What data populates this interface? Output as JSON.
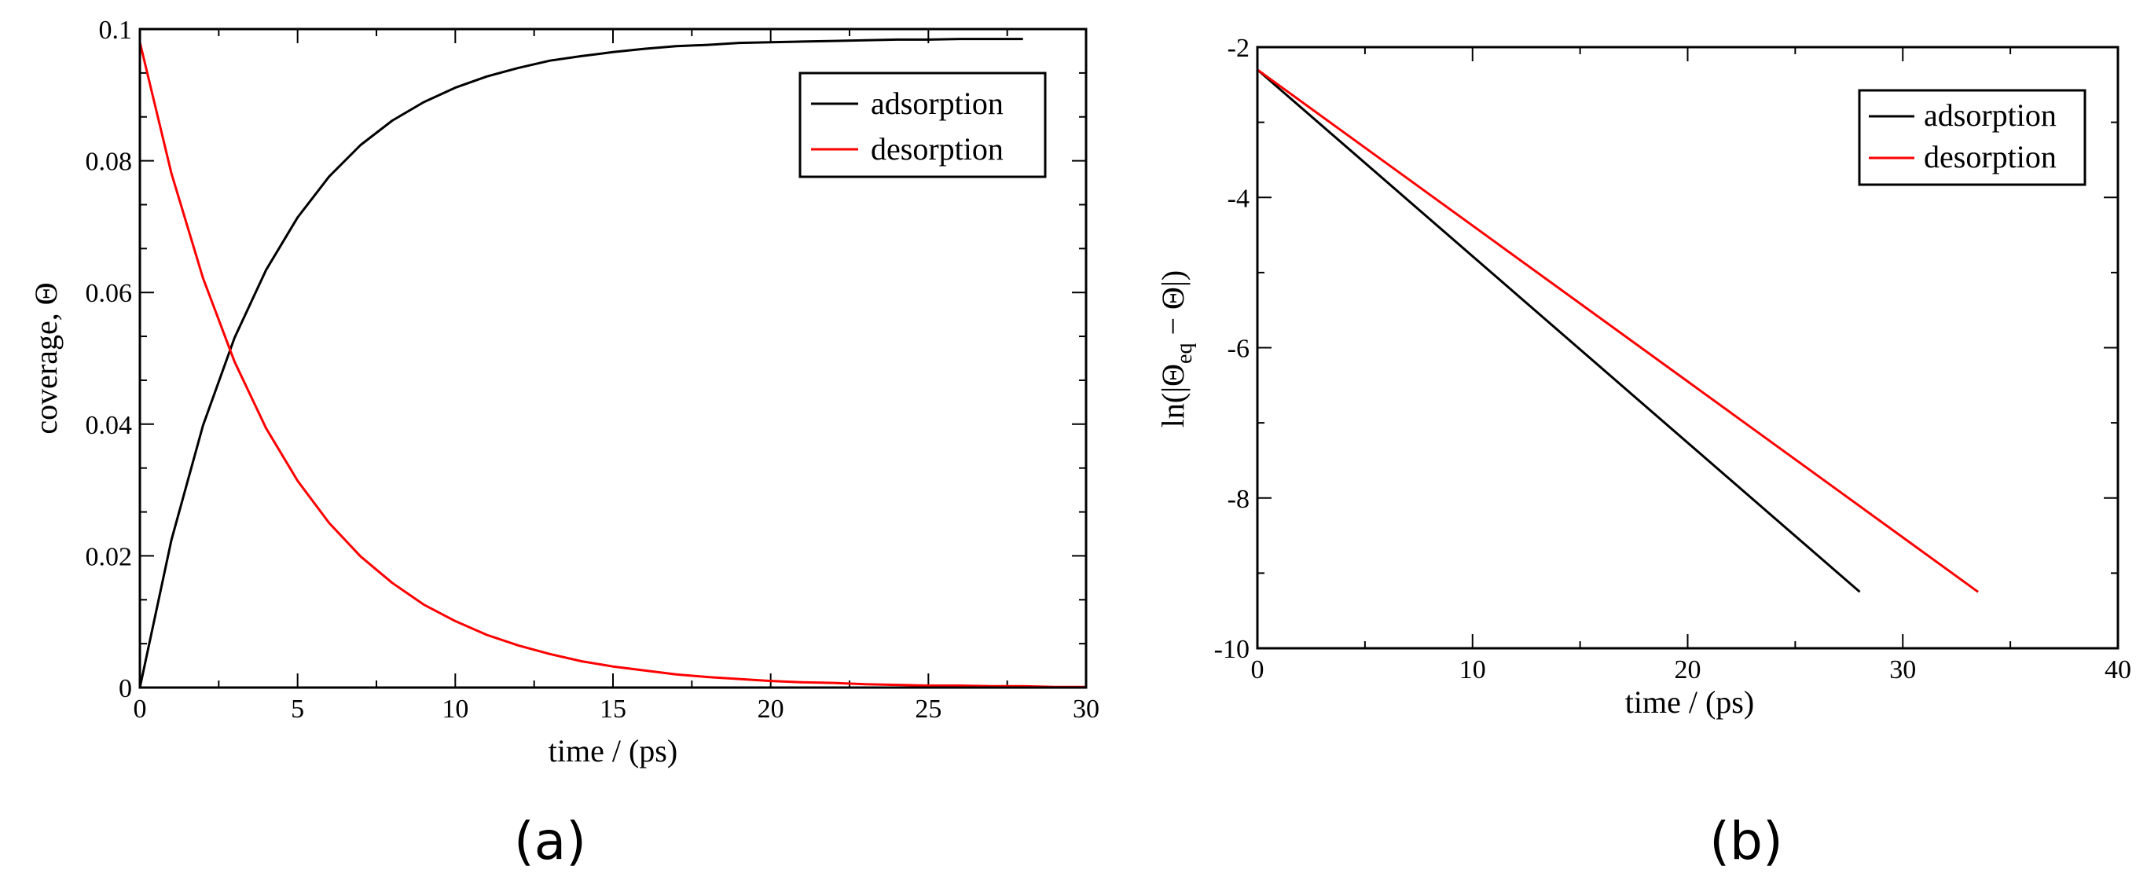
{
  "chart_data": [
    {
      "type": "line",
      "panel_label": "(a)",
      "xlabel": "time / (ps)",
      "ylabel": "coverage, Θ",
      "xlim": [
        0,
        30
      ],
      "ylim": [
        0,
        0.1
      ],
      "x_ticks": [
        0,
        5,
        10,
        15,
        20,
        25,
        30
      ],
      "x_tick_labels": [
        "0",
        "5",
        "10",
        "15",
        "20",
        "25",
        "30"
      ],
      "y_ticks": [
        0,
        0.02,
        0.04,
        0.06,
        0.08,
        0.1
      ],
      "y_tick_labels": [
        "0",
        "0.02",
        "0.04",
        "0.06",
        "0.08",
        "0.1"
      ],
      "legend_position": "top-right",
      "series": [
        {
          "name": "adsorption",
          "color": "#000000",
          "x": [
            0,
            1,
            2,
            3,
            4,
            5,
            6,
            7,
            8,
            9,
            10,
            11,
            12,
            13,
            14,
            15,
            16,
            17,
            18,
            19,
            20,
            21,
            22,
            23,
            24,
            25,
            26,
            27,
            28
          ],
          "y": [
            0,
            0.0224,
            0.0398,
            0.0531,
            0.0634,
            0.0714,
            0.0776,
            0.0824,
            0.0861,
            0.0889,
            0.0911,
            0.0928,
            0.0941,
            0.0952,
            0.0959,
            0.0965,
            0.097,
            0.0974,
            0.0976,
            0.0979,
            0.098,
            0.0981,
            0.0982,
            0.0983,
            0.0984,
            0.0984,
            0.0985,
            0.0985,
            0.0985
          ]
        },
        {
          "name": "desorption",
          "color": "#ff0000",
          "x": [
            0,
            1,
            2,
            3,
            4,
            5,
            6,
            7,
            8,
            9,
            10,
            11,
            12,
            13,
            14,
            15,
            16,
            17,
            18,
            19,
            20,
            21,
            22,
            23,
            24,
            25,
            26,
            27,
            28,
            29,
            30
          ],
          "y": [
            0.098,
            0.0781,
            0.0622,
            0.0495,
            0.0394,
            0.0314,
            0.025,
            0.0199,
            0.0159,
            0.0126,
            0.0101,
            0.008,
            0.0064,
            0.0051,
            0.004,
            0.0032,
            0.0026,
            0.002,
            0.0016,
            0.0013,
            0.001,
            0.0008,
            0.0007,
            0.0005,
            0.0004,
            0.0003,
            0.0003,
            0.0002,
            0.0002,
            0.0001,
            0.0001
          ]
        }
      ]
    },
    {
      "type": "line",
      "panel_label": "(b)",
      "xlabel": "time / (ps)",
      "ylabel_parts": {
        "before": "ln(|Θ",
        "subscript": "eq",
        "after": " − Θ|)"
      },
      "xlim": [
        0,
        40
      ],
      "ylim": [
        -10,
        -2
      ],
      "x_ticks": [
        0,
        10,
        20,
        30,
        40
      ],
      "x_tick_labels": [
        "0",
        "10",
        "20",
        "30",
        "40"
      ],
      "y_ticks": [
        -10,
        -8,
        -6,
        -4,
        -2
      ],
      "y_tick_labels": [
        "-10",
        "-8",
        "-6",
        "-4",
        "-2"
      ],
      "legend_position": "top-right",
      "series": [
        {
          "name": "adsorption",
          "color": "#000000",
          "x": [
            0,
            28
          ],
          "y": [
            -2.3,
            -9.25
          ]
        },
        {
          "name": "desorption",
          "color": "#ff0000",
          "x": [
            0,
            33.5
          ],
          "y": [
            -2.3,
            -9.25
          ]
        }
      ]
    }
  ]
}
